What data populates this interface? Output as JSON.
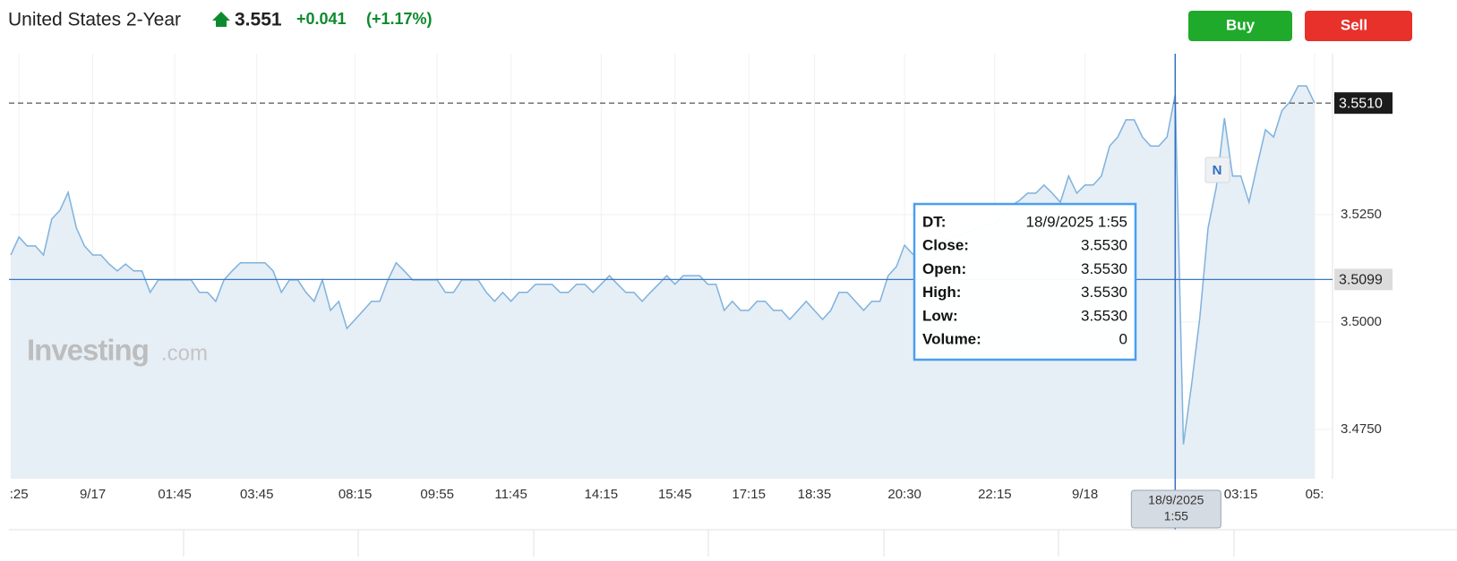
{
  "header": {
    "title": "United States 2-Year",
    "price": "3.551",
    "change": "+0.041",
    "change_pct": "(+1.17%)"
  },
  "buttons": {
    "buy": "Buy",
    "sell": "Sell"
  },
  "watermark": {
    "brand": "Investing",
    "suffix": ".com"
  },
  "news_marker": "N",
  "crosshair_label": [
    "18/9/2025",
    "1:55"
  ],
  "tooltip": {
    "rows": [
      {
        "name": "DT:",
        "value": "18/9/2025 1:55"
      },
      {
        "name": "Close:",
        "value": {
          "value": 3.553,
          "label": "3.5530"
        }
      },
      {
        "name": "Open:",
        "value": {
          "value": 3.553,
          "label": "3.5530"
        }
      },
      {
        "name": "High:",
        "value": {
          "value": 3.553,
          "label": "3.5530"
        }
      },
      {
        "name": "Low:",
        "value": {
          "value": 3.553,
          "label": "3.5530"
        }
      },
      {
        "name": "Volume:",
        "value": 0
      }
    ]
  },
  "chart_data": {
    "type": "line",
    "color": "#7fb2dd",
    "fill": "#e6eef6",
    "grid": true,
    "categories": [
      null,
      ":25",
      null,
      null,
      null,
      null,
      null,
      null,
      null,
      null,
      "9/17",
      null,
      null,
      null,
      null,
      null,
      null,
      null,
      null,
      null,
      "01:45",
      null,
      null,
      null,
      null,
      null,
      null,
      null,
      null,
      null,
      "03:45",
      null,
      null,
      null,
      null,
      null,
      null,
      null,
      null,
      null,
      null,
      null,
      "08:15",
      null,
      null,
      null,
      null,
      null,
      null,
      null,
      null,
      null,
      "09:55",
      null,
      null,
      null,
      null,
      null,
      null,
      null,
      null,
      "11:45",
      null,
      null,
      null,
      null,
      null,
      null,
      null,
      null,
      null,
      null,
      "14:15",
      null,
      null,
      null,
      null,
      null,
      null,
      null,
      null,
      "15:45",
      null,
      null,
      null,
      null,
      null,
      null,
      null,
      null,
      "17:15",
      null,
      null,
      null,
      null,
      null,
      null,
      null,
      "18:35",
      null,
      null,
      null,
      null,
      null,
      null,
      null,
      null,
      null,
      null,
      "20:30",
      null,
      null,
      null,
      null,
      null,
      null,
      null,
      null,
      null,
      null,
      "22:15",
      null,
      null,
      null,
      null,
      null,
      null,
      null,
      null,
      null,
      null,
      "9/18",
      null,
      null,
      null,
      null,
      null,
      null,
      null,
      null,
      null,
      null,
      null,
      null,
      null,
      null,
      null,
      null,
      null,
      null,
      "03:15",
      null,
      null,
      null,
      null,
      null,
      null,
      null,
      null,
      "05:"
    ],
    "values": [
      3.5156,
      3.5198,
      3.5177,
      3.5177,
      3.5156,
      3.524,
      3.526,
      3.5302,
      3.5219,
      3.5177,
      3.5156,
      3.5156,
      3.5135,
      3.5119,
      3.5135,
      3.5119,
      3.5119,
      3.5069,
      3.5098,
      3.5098,
      3.5098,
      3.5098,
      3.5098,
      3.5069,
      3.5069,
      3.5048,
      3.5098,
      3.5119,
      3.5138,
      3.5138,
      3.5138,
      3.5138,
      3.5119,
      3.5069,
      3.5098,
      3.5098,
      3.5069,
      3.5048,
      3.5098,
      3.5027,
      3.5048,
      3.4985,
      3.5006,
      3.5027,
      3.5048,
      3.5048,
      3.5098,
      3.5138,
      3.5119,
      3.5098,
      3.5098,
      3.5098,
      3.5098,
      3.5069,
      3.5069,
      3.5098,
      3.5098,
      3.5098,
      3.5069,
      3.5048,
      3.5069,
      3.5048,
      3.5069,
      3.5069,
      3.5088,
      3.5088,
      3.5088,
      3.5069,
      3.5069,
      3.5088,
      3.5088,
      3.5069,
      3.5088,
      3.5108,
      3.5088,
      3.5069,
      3.5069,
      3.5048,
      3.5069,
      3.5088,
      3.5108,
      3.5088,
      3.5108,
      3.5108,
      3.5108,
      3.5088,
      3.5088,
      3.5027,
      3.5048,
      3.5027,
      3.5027,
      3.5048,
      3.5048,
      3.5027,
      3.5027,
      3.5006,
      3.5027,
      3.5048,
      3.5027,
      3.5006,
      3.5027,
      3.5069,
      3.5069,
      3.5048,
      3.5027,
      3.5048,
      3.5048,
      3.5108,
      3.5129,
      3.5179,
      3.5158,
      3.5158,
      3.5179,
      3.5188,
      3.5192,
      3.5196,
      3.5204,
      3.5213,
      3.5219,
      3.5225,
      3.5229,
      3.525,
      3.5271,
      3.5283,
      3.53,
      3.53,
      3.5319,
      3.53,
      3.5279,
      3.534,
      3.53,
      3.5319,
      3.5319,
      3.534,
      3.541,
      3.5431,
      3.5471,
      3.5471,
      3.5431,
      3.541,
      3.541,
      3.5431,
      3.553,
      3.4715,
      3.4854,
      3.501,
      3.5219,
      3.5313,
      3.5475,
      3.534,
      3.534,
      3.5279,
      3.5365,
      3.5448,
      3.5431,
      3.5492,
      3.5513,
      3.555,
      3.555,
      3.551
    ],
    "ylim": [
      3.4635,
      3.5625
    ],
    "yticks": [
      {
        "value": 3.475,
        "label": "3.4750"
      },
      {
        "value": 3.5,
        "label": "3.5000"
      },
      {
        "value": 3.525,
        "label": "3.5250"
      }
    ],
    "reference_lines": [
      {
        "value": 3.551,
        "label": "3.5510",
        "style": "dashed",
        "color": "#444444",
        "label_background": "#1b1b1b",
        "label_color": "#ffffff"
      },
      {
        "value": 3.5099,
        "label": "3.5099",
        "style": "solid",
        "color": "#3a78c2",
        "label_background": "#dcdcdc",
        "label_color": "#222222"
      }
    ]
  }
}
